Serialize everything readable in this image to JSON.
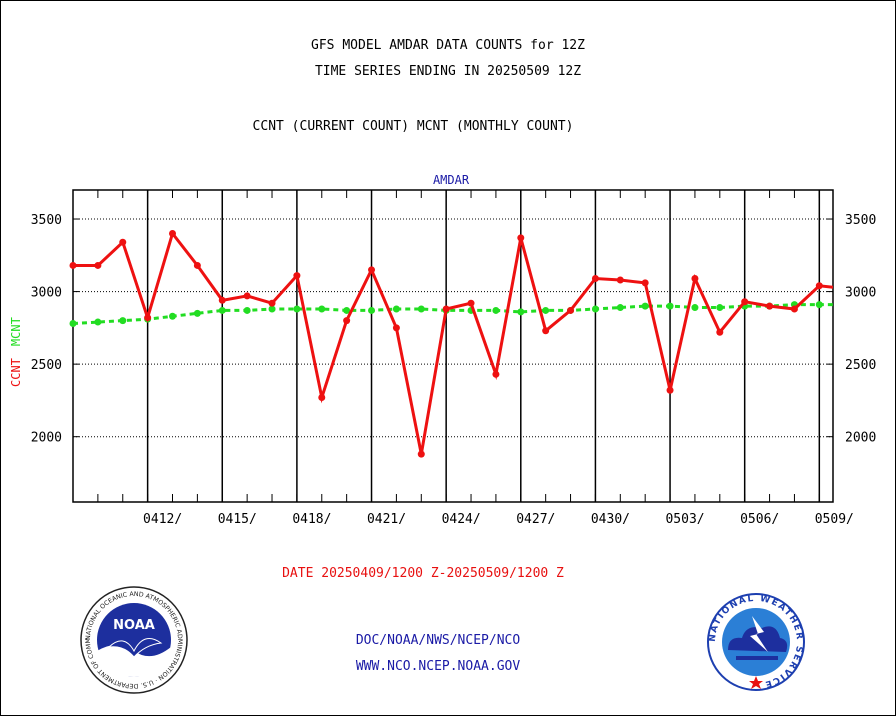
{
  "header": {
    "title_line1": "GFS MODEL AMDAR DATA COUNTS for 12Z",
    "title_line2": "TIME SERIES ENDING IN 20250509 12Z",
    "subtitle": "CCNT (CURRENT COUNT) MCNT (MONTHLY COUNT)"
  },
  "chart_data": {
    "type": "line",
    "title": "AMDAR",
    "ylabel_parts": [
      "CCNT",
      "MCNT"
    ],
    "xlabel": "DATE 20250409/1200 Z-20250509/1200 Z",
    "ylim": [
      1550,
      3700
    ],
    "yticks": [
      2000,
      2500,
      3000,
      3500
    ],
    "ytick_labels": [
      "2000",
      "2500",
      "3000",
      "3500"
    ],
    "x_day_range": [
      0,
      30.55
    ],
    "xticks": [
      3,
      6,
      9,
      12,
      15,
      18,
      21,
      24,
      27,
      30
    ],
    "xtick_labels": [
      "0412/",
      "0415/",
      "0418/",
      "0421/",
      "0424/",
      "0427/",
      "0430/",
      "0503/",
      "0506/",
      "0509/"
    ],
    "grid": true,
    "colors": {
      "ccnt": "#ee1111",
      "mcnt": "#22dd22",
      "axis": "#000000"
    },
    "series": [
      {
        "name": "CCNT",
        "x": [
          0,
          1,
          2,
          3,
          4,
          5,
          6,
          7,
          8,
          9,
          10,
          11,
          12,
          13,
          14,
          15,
          16,
          17,
          18,
          19,
          20,
          21,
          22,
          23,
          24,
          25,
          26,
          27,
          28,
          29,
          30,
          30.55
        ],
        "values": [
          3180,
          3180,
          3340,
          2820,
          3400,
          3180,
          2940,
          2970,
          2920,
          3110,
          2270,
          2800,
          3150,
          2750,
          1880,
          2880,
          2920,
          2430,
          3370,
          2730,
          2870,
          3090,
          3080,
          3060,
          2320,
          3090,
          2720,
          2930,
          2900,
          2880,
          3040,
          3030
        ]
      },
      {
        "name": "MCNT",
        "x": [
          0,
          1,
          2,
          3,
          4,
          5,
          6,
          7,
          8,
          9,
          10,
          11,
          12,
          13,
          14,
          15,
          16,
          17,
          18,
          19,
          20,
          21,
          22,
          23,
          24,
          25,
          26,
          27,
          28,
          29,
          30,
          30.55
        ],
        "values": [
          2780,
          2790,
          2800,
          2810,
          2830,
          2850,
          2870,
          2870,
          2880,
          2880,
          2880,
          2870,
          2870,
          2880,
          2880,
          2870,
          2870,
          2870,
          2860,
          2870,
          2870,
          2880,
          2890,
          2900,
          2900,
          2890,
          2890,
          2900,
          2900,
          2910,
          2910,
          2910
        ]
      }
    ]
  },
  "footer": {
    "link1": "DOC/NOAA/NWS/NCEP/NCO",
    "link2": "WWW.NCO.NCEP.NOAA.GOV",
    "noaa_logo_text": "NOAA",
    "noaa_ring_text": "NATIONAL OCEANIC AND ATMOSPHERIC ADMINISTRATION · U.S. DEPARTMENT OF COMMERCE ·",
    "nws_ring_text": "NATIONAL WEATHER SERVICE"
  }
}
